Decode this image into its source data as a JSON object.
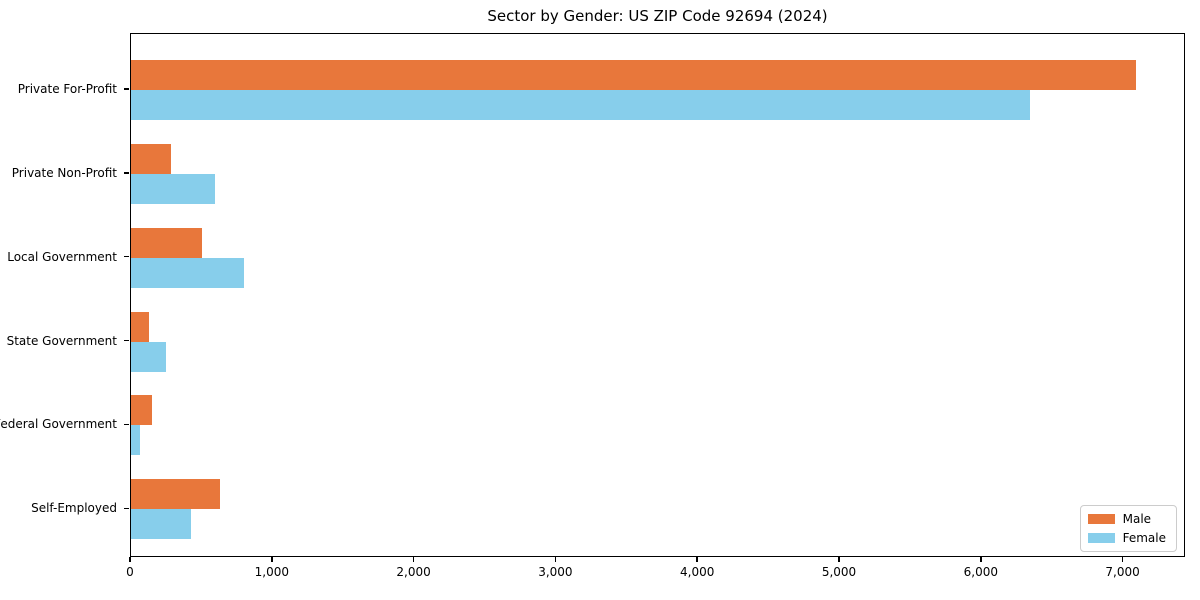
{
  "chart_data": {
    "type": "bar",
    "orientation": "horizontal",
    "title": "Sector by Gender: US ZIP Code 92694 (2024)",
    "categories": [
      "Private For-Profit",
      "Private Non-Profit",
      "Local Government",
      "State Government",
      "Federal Government",
      "Self-Employed"
    ],
    "series": [
      {
        "name": "Male",
        "color": "#E8773B",
        "values": [
          7090,
          280,
          500,
          130,
          150,
          630
        ]
      },
      {
        "name": "Female",
        "color": "#87CEEB",
        "values": [
          6340,
          590,
          800,
          250,
          60,
          420
        ]
      }
    ],
    "xlabel": "",
    "ylabel": "",
    "xlim": [
      0,
      7440
    ],
    "xticks": [
      0,
      1000,
      2000,
      3000,
      4000,
      5000,
      6000,
      7000
    ],
    "xtick_labels": [
      "0",
      "1,000",
      "2,000",
      "3,000",
      "4,000",
      "5,000",
      "6,000",
      "7,000"
    ],
    "grid": "off",
    "legend_position": "lower right"
  }
}
